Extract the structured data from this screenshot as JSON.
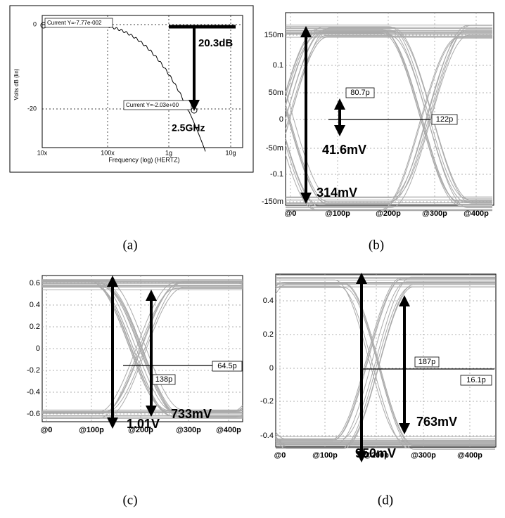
{
  "figure": {
    "panels": [
      {
        "caption": "(a)",
        "y_label": "Volts dB (lin)",
        "x_label": "Frequency (log) (HERTZ)",
        "yticks": [
          "0",
          "-20"
        ],
        "xticks": [
          "10x",
          "100x",
          "1g",
          "10g"
        ],
        "annotations": [
          "Current Y=-7.77e-002",
          "Current Y=-2.03e+00",
          "20.3dB",
          "2.5GHz"
        ]
      },
      {
        "caption": "(b)",
        "yticks": [
          "150m",
          "0.1",
          "50m",
          "0",
          "-50m",
          "-0.1",
          "-150m"
        ],
        "xticks": [
          "@0",
          "@100p",
          "@200p",
          "@300p",
          "@400p"
        ],
        "annotations": [
          "80.7p",
          "122p",
          "41.6mV",
          "314mV"
        ]
      },
      {
        "caption": "(c)",
        "yticks": [
          "0.6",
          "0.4",
          "0.2",
          "0",
          "-0.2",
          "-0.4",
          "-0.6"
        ],
        "xticks": [
          "@0",
          "@100p",
          "@200p",
          "@300p",
          "@400p"
        ],
        "annotations": [
          "138p",
          "64.5p",
          "733mV",
          "1.01V"
        ]
      },
      {
        "caption": "(d)",
        "yticks": [
          "0.4",
          "0.2",
          "0",
          "-0.2",
          "-0.4"
        ],
        "xticks": [
          "@0",
          "@100p",
          "@200p",
          "@300p",
          "@400p"
        ],
        "annotations": [
          "187p",
          "16.1p",
          "763mV",
          "950mV"
        ]
      }
    ]
  }
}
